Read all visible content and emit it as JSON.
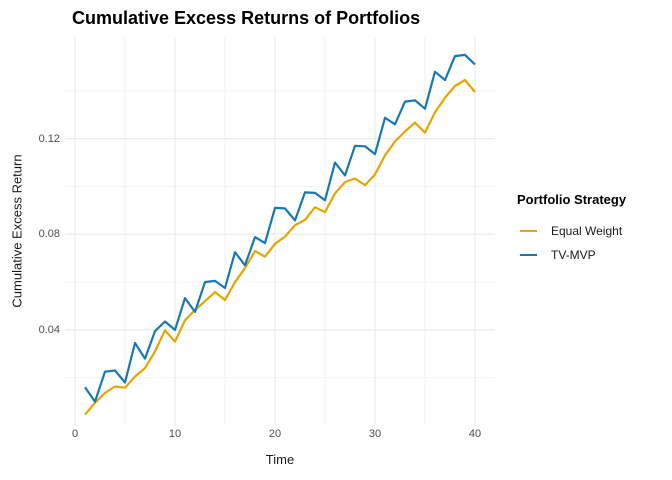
{
  "title": "Cumulative Excess Returns of Portfolios",
  "x_axis": {
    "label": "Time",
    "tick_labels": [
      "0",
      "10",
      "20",
      "30",
      "40"
    ],
    "tick_values": [
      0,
      10,
      20,
      30,
      40
    ]
  },
  "y_axis": {
    "label": "Cumulative Excess Return",
    "tick_labels": [
      "0.04",
      "0.08",
      "0.12"
    ],
    "tick_values": [
      0.04,
      0.08,
      0.12
    ]
  },
  "legend": {
    "title": "Portfolio Strategy",
    "items": [
      {
        "label": "Equal Weight",
        "color": "#E8A400"
      },
      {
        "label": "TV-MVP",
        "color": "#1878B4"
      }
    ]
  },
  "colors": {
    "background": "#ffffff",
    "grid_major": "#EBEBEB",
    "grid_minor": "#F1F1F1",
    "tick_text": "#4d4d4d"
  },
  "chart_data": {
    "type": "line",
    "title": "Cumulative Excess Returns of Portfolios",
    "xlabel": "Time",
    "ylabel": "Cumulative Excess Return",
    "xlim": [
      -0.95,
      41.95
    ],
    "ylim": [
      0,
      0.1625
    ],
    "grid": true,
    "legend_position": "right",
    "x_major_ticks": [
      0,
      10,
      20,
      30,
      40
    ],
    "x_minor_ticks": [
      5,
      15,
      25,
      35
    ],
    "y_major_ticks": [
      0.04,
      0.08,
      0.12
    ],
    "y_minor_ticks": [
      0.02,
      0.06,
      0.1,
      0.14
    ],
    "x": [
      1,
      2,
      3,
      4,
      5,
      6,
      7,
      8,
      9,
      10,
      11,
      12,
      13,
      14,
      15,
      16,
      17,
      18,
      19,
      20,
      21,
      22,
      23,
      24,
      25,
      26,
      27,
      28,
      29,
      30,
      31,
      32,
      33,
      34,
      35,
      36,
      37,
      38,
      39,
      40
    ],
    "series": [
      {
        "name": "Equal Weight",
        "color": "#E8A400",
        "values": [
          0.0045,
          0.0095,
          0.0136,
          0.0163,
          0.0158,
          0.0205,
          0.024,
          0.031,
          0.0398,
          0.0351,
          0.044,
          0.0483,
          0.052,
          0.0558,
          0.0525,
          0.06,
          0.0658,
          0.073,
          0.0706,
          0.076,
          0.079,
          0.0838,
          0.086,
          0.0913,
          0.0892,
          0.0971,
          0.1018,
          0.1033,
          0.1005,
          0.105,
          0.113,
          0.1188,
          0.123,
          0.1267,
          0.1225,
          0.131,
          0.1371,
          0.142,
          0.1445,
          0.1395
        ]
      },
      {
        "name": "TV-MVP",
        "color": "#1878B4",
        "values": [
          0.016,
          0.01,
          0.0225,
          0.023,
          0.018,
          0.0345,
          0.028,
          0.0395,
          0.0435,
          0.04,
          0.0533,
          0.0475,
          0.06,
          0.0605,
          0.0575,
          0.0725,
          0.067,
          0.0788,
          0.0763,
          0.091,
          0.0908,
          0.0858,
          0.0975,
          0.0973,
          0.0942,
          0.11,
          0.1046,
          0.117,
          0.1168,
          0.1135,
          0.1287,
          0.126,
          0.1355,
          0.136,
          0.1325,
          0.148,
          0.1445,
          0.1545,
          0.155,
          0.151
        ]
      }
    ]
  }
}
